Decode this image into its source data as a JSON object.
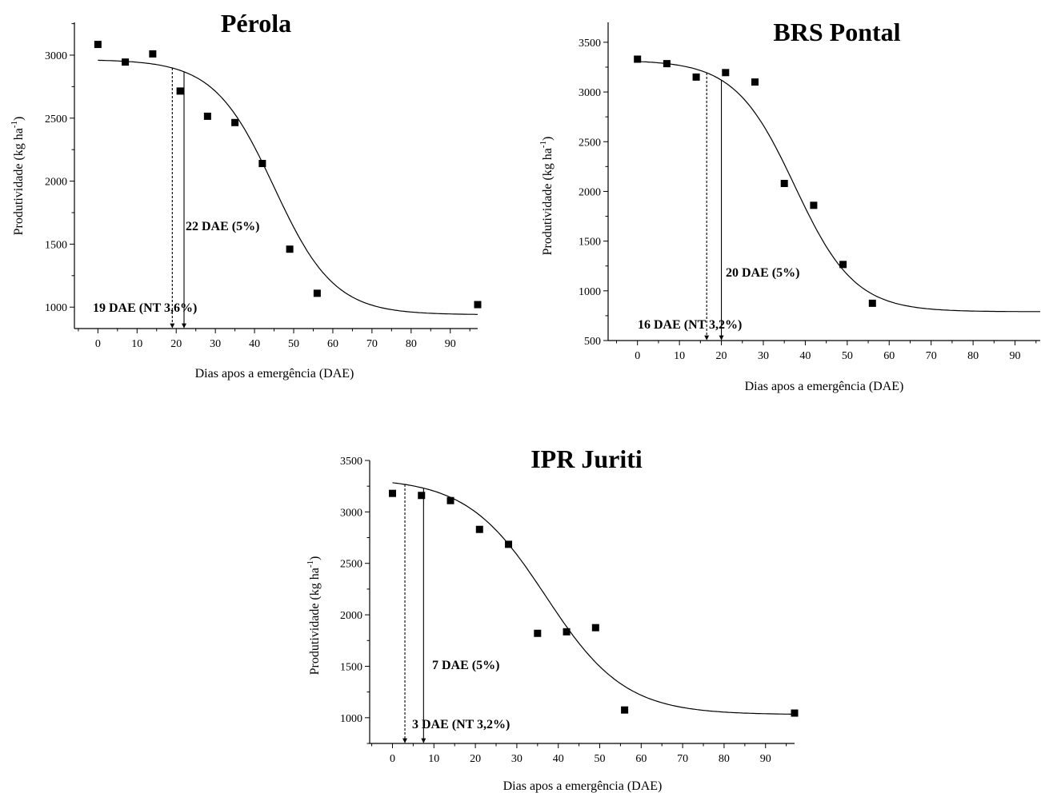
{
  "chart_data": [
    {
      "type": "scatter",
      "title": "Pérola",
      "xlabel": "Dias apos a emergência (DAE)",
      "ylabel": {
        "base": "Produtividade (kg ha",
        "sup": "-1",
        "close": ")"
      },
      "xlim": [
        -6,
        97
      ],
      "ylim": [
        830,
        3260
      ],
      "xticks": [
        0,
        10,
        20,
        30,
        40,
        50,
        60,
        70,
        80,
        90
      ],
      "yticks": [
        1000,
        1500,
        2000,
        2500,
        3000
      ],
      "grid": false,
      "points": [
        {
          "x": 0,
          "y": 3085
        },
        {
          "x": 7,
          "y": 2945
        },
        {
          "x": 14,
          "y": 3010
        },
        {
          "x": 21,
          "y": 2715
        },
        {
          "x": 28,
          "y": 2515
        },
        {
          "x": 35,
          "y": 2465
        },
        {
          "x": 42,
          "y": 2140
        },
        {
          "x": 49,
          "y": 1460
        },
        {
          "x": 56,
          "y": 1110
        },
        {
          "x": 97,
          "y": 1020
        }
      ],
      "fit_curve": {
        "model": "logistic",
        "top": 2965,
        "bottom": 940,
        "x50": 45,
        "slope": 0.13,
        "x_range": [
          0,
          97
        ]
      },
      "markers": [
        {
          "x": 19,
          "style": "dashed",
          "label": "19 DAE (NT 3,6%)"
        },
        {
          "x": 22,
          "style": "solid",
          "label": "22 DAE (5%)"
        }
      ]
    },
    {
      "type": "scatter",
      "title": "BRS Pontal",
      "xlabel": "Dias apos a emergência (DAE)",
      "ylabel": {
        "base": "Produtividade (kg ha",
        "sup": "-1",
        "close": ")"
      },
      "xlim": [
        -7,
        96
      ],
      "ylim": [
        500,
        3700
      ],
      "xticks": [
        0,
        10,
        20,
        30,
        40,
        50,
        60,
        70,
        80,
        90
      ],
      "yticks": [
        500,
        1000,
        1500,
        2000,
        2500,
        3000,
        3500
      ],
      "grid": false,
      "points": [
        {
          "x": 0,
          "y": 3330
        },
        {
          "x": 7,
          "y": 3285
        },
        {
          "x": 14,
          "y": 3150
        },
        {
          "x": 21,
          "y": 3195
        },
        {
          "x": 28,
          "y": 3100
        },
        {
          "x": 35,
          "y": 2080
        },
        {
          "x": 42,
          "y": 1860
        },
        {
          "x": 49,
          "y": 1265
        },
        {
          "x": 56,
          "y": 875
        }
      ],
      "fit_curve": {
        "model": "logistic",
        "top": 3320,
        "bottom": 790,
        "x50": 37.5,
        "slope": 0.14,
        "x_range": [
          0,
          96
        ]
      },
      "markers": [
        {
          "x": 16.5,
          "style": "dashed",
          "label": "16 DAE (NT 3,2%)"
        },
        {
          "x": 20,
          "style": "solid",
          "label": "20 DAE (5%)"
        }
      ]
    },
    {
      "type": "scatter",
      "title": "IPR Juriti",
      "xlabel": "Dias apos a emergência (DAE)",
      "ylabel": {
        "base": "Produtividade (kg ha",
        "sup": "-1",
        "close": ")"
      },
      "xlim": [
        -5.5,
        97
      ],
      "ylim": [
        750,
        3500
      ],
      "xticks": [
        0,
        10,
        20,
        30,
        40,
        50,
        60,
        70,
        80,
        90
      ],
      "yticks": [
        1000,
        1500,
        2000,
        2500,
        3000,
        3500
      ],
      "grid": false,
      "points": [
        {
          "x": 0,
          "y": 3180
        },
        {
          "x": 7,
          "y": 3160
        },
        {
          "x": 14,
          "y": 3110
        },
        {
          "x": 21,
          "y": 2830
        },
        {
          "x": 28,
          "y": 2685
        },
        {
          "x": 35,
          "y": 1820
        },
        {
          "x": 42,
          "y": 1835
        },
        {
          "x": 49,
          "y": 1875
        },
        {
          "x": 56,
          "y": 1075
        },
        {
          "x": 97,
          "y": 1045
        }
      ],
      "fit_curve": {
        "model": "logistic",
        "top": 3330,
        "bottom": 1030,
        "x50": 37,
        "slope": 0.105,
        "x_range": [
          0,
          97
        ]
      },
      "markers": [
        {
          "x": 3,
          "style": "dashed",
          "label": "3 DAE (NT 3,2%)"
        },
        {
          "x": 7.5,
          "style": "solid",
          "label": "7 DAE (5%)"
        }
      ]
    }
  ]
}
